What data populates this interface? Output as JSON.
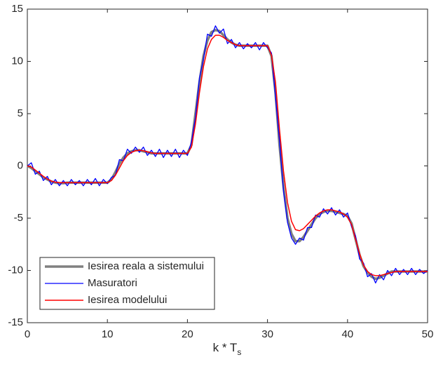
{
  "chart_data": {
    "type": "line",
    "xlabel": {
      "text": "k * T",
      "subscript": "s"
    },
    "x": [
      0,
      0.5,
      1,
      1.5,
      2,
      2.5,
      3,
      3.5,
      4,
      4.5,
      5,
      5.5,
      6,
      6.5,
      7,
      7.5,
      8,
      8.5,
      9,
      9.5,
      10,
      10.5,
      11,
      11.5,
      12,
      12.5,
      13,
      13.5,
      14,
      14.5,
      15,
      15.5,
      16,
      16.5,
      17,
      17.5,
      18,
      18.5,
      19,
      19.5,
      20,
      20.5,
      21,
      21.5,
      22,
      22.5,
      23,
      23.5,
      24,
      24.5,
      25,
      25.5,
      26,
      26.5,
      27,
      27.5,
      28,
      28.5,
      29,
      29.5,
      30,
      30.5,
      31,
      31.5,
      32,
      32.5,
      33,
      33.5,
      34,
      34.5,
      35,
      35.5,
      36,
      36.5,
      37,
      37.5,
      38,
      38.5,
      39,
      39.5,
      40,
      40.5,
      41,
      41.5,
      42,
      42.5,
      43,
      43.5,
      44,
      44.5,
      45,
      45.5,
      46,
      46.5,
      47,
      47.5,
      48,
      48.5,
      49,
      49.5,
      50
    ],
    "series": [
      {
        "name": "Iesirea reala a sistemului",
        "color": "#808080",
        "width": 3.5,
        "values": [
          0,
          -0.2,
          -0.5,
          -0.8,
          -1.1,
          -1.3,
          -1.5,
          -1.6,
          -1.65,
          -1.65,
          -1.6,
          -1.6,
          -1.6,
          -1.6,
          -1.6,
          -1.6,
          -1.6,
          -1.6,
          -1.6,
          -1.6,
          -1.6,
          -1.3,
          -0.6,
          0.2,
          0.8,
          1.2,
          1.4,
          1.5,
          1.5,
          1.4,
          1.3,
          1.2,
          1.2,
          1.2,
          1.2,
          1.2,
          1.2,
          1.2,
          1.2,
          1.2,
          1.2,
          2,
          5,
          8,
          10.5,
          12,
          12.8,
          13,
          12.9,
          12.5,
          12.1,
          11.8,
          11.6,
          11.5,
          11.5,
          11.5,
          11.5,
          11.5,
          11.5,
          11.5,
          11.5,
          10.5,
          7,
          2,
          -2,
          -5,
          -6.5,
          -7.2,
          -7.2,
          -6.8,
          -6.2,
          -5.6,
          -5,
          -4.6,
          -4.4,
          -4.3,
          -4.3,
          -4.4,
          -4.5,
          -4.6,
          -4.8,
          -5.5,
          -7,
          -8.5,
          -9.6,
          -10.2,
          -10.6,
          -10.8,
          -10.7,
          -10.5,
          -10.3,
          -10.1,
          -10.1,
          -10.1,
          -10.1,
          -10.1,
          -10.1,
          -10.1,
          -10.1,
          -10.1,
          -10.1
        ]
      },
      {
        "name": "Masuratori",
        "color": "#0000ff",
        "width": 1.3,
        "values": [
          0,
          0.3,
          -0.8,
          -0.5,
          -1.4,
          -1.0,
          -1.8,
          -1.3,
          -1.9,
          -1.4,
          -1.9,
          -1.3,
          -1.8,
          -1.4,
          -1.9,
          -1.3,
          -1.8,
          -1.2,
          -1.9,
          -1.3,
          -1.7,
          -1.1,
          -0.9,
          0.6,
          0.5,
          1.6,
          1.2,
          1.8,
          1.3,
          1.8,
          1.0,
          1.5,
          0.9,
          1.6,
          0.8,
          1.5,
          0.9,
          1.6,
          0.8,
          1.5,
          1.0,
          2.3,
          4.6,
          8.4,
          10.2,
          12.6,
          12.4,
          13.4,
          12.7,
          13.1,
          11.7,
          12.1,
          11.3,
          11.8,
          11.2,
          11.7,
          11.3,
          11.8,
          11.1,
          11.8,
          11.3,
          10.8,
          6.6,
          2.4,
          -2.4,
          -5.4,
          -6.9,
          -7.5,
          -6.9,
          -7.1,
          -5.9,
          -5.9,
          -4.7,
          -4.9,
          -4.1,
          -4.6,
          -4.0,
          -4.7,
          -4.2,
          -4.9,
          -4.5,
          -5.8,
          -6.7,
          -8.9,
          -9.3,
          -10.6,
          -10.3,
          -11.2,
          -10.4,
          -10.9,
          -10.0,
          -10.5,
          -9.8,
          -10.4,
          -9.9,
          -10.4,
          -9.8,
          -10.4,
          -9.9,
          -10.3,
          -10.0
        ]
      },
      {
        "name": "Iesirea modelului",
        "color": "#ff0000",
        "width": 1.5,
        "values": [
          0,
          -0.1,
          -0.4,
          -0.7,
          -1.0,
          -1.25,
          -1.45,
          -1.55,
          -1.6,
          -1.6,
          -1.6,
          -1.6,
          -1.6,
          -1.6,
          -1.6,
          -1.6,
          -1.6,
          -1.6,
          -1.6,
          -1.6,
          -1.6,
          -1.4,
          -0.9,
          -0.2,
          0.5,
          1.0,
          1.3,
          1.45,
          1.5,
          1.45,
          1.35,
          1.25,
          1.2,
          1.2,
          1.2,
          1.2,
          1.2,
          1.2,
          1.2,
          1.2,
          1.2,
          1.8,
          4,
          7,
          9.5,
          11.2,
          12.1,
          12.5,
          12.5,
          12.3,
          12,
          11.8,
          11.6,
          11.5,
          11.5,
          11.5,
          11.5,
          11.5,
          11.5,
          11.5,
          11.5,
          10.6,
          8,
          3.5,
          -0.5,
          -3.5,
          -5.3,
          -6.1,
          -6.2,
          -6,
          -5.6,
          -5.2,
          -4.8,
          -4.5,
          -4.3,
          -4.2,
          -4.2,
          -4.3,
          -4.4,
          -4.6,
          -4.9,
          -5.6,
          -7,
          -8.4,
          -9.5,
          -10.1,
          -10.4,
          -10.5,
          -10.5,
          -10.4,
          -10.3,
          -10.2,
          -10.1,
          -10.1,
          -10.1,
          -10.1,
          -10.1,
          -10.1,
          -10.1,
          -10.1,
          -10.1
        ]
      }
    ],
    "xlim": [
      0,
      50
    ],
    "xticks": [
      0,
      10,
      20,
      30,
      40,
      50
    ],
    "ylim": [
      -15,
      15
    ],
    "yticks": [
      -15,
      -10,
      -5,
      0,
      5,
      10,
      15
    ],
    "legend": "lower left"
  }
}
